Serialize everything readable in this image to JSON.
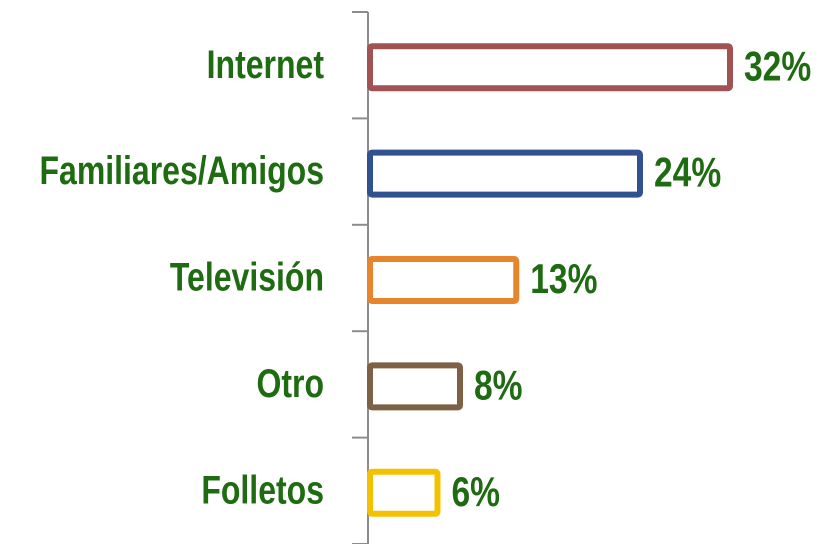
{
  "chart_data": {
    "type": "bar",
    "orientation": "horizontal",
    "categories": [
      "Internet",
      "Familiares/Amigos",
      "Televisión",
      "Otro",
      "Folletos"
    ],
    "values": [
      32,
      24,
      13,
      8,
      6
    ],
    "value_labels": [
      "32%",
      "24%",
      "13%",
      "8%",
      "6%"
    ],
    "colors": [
      "#a15252",
      "#30538f",
      "#e8852c",
      "#7d6045",
      "#f5c000"
    ],
    "xlim": [
      0,
      40
    ]
  }
}
